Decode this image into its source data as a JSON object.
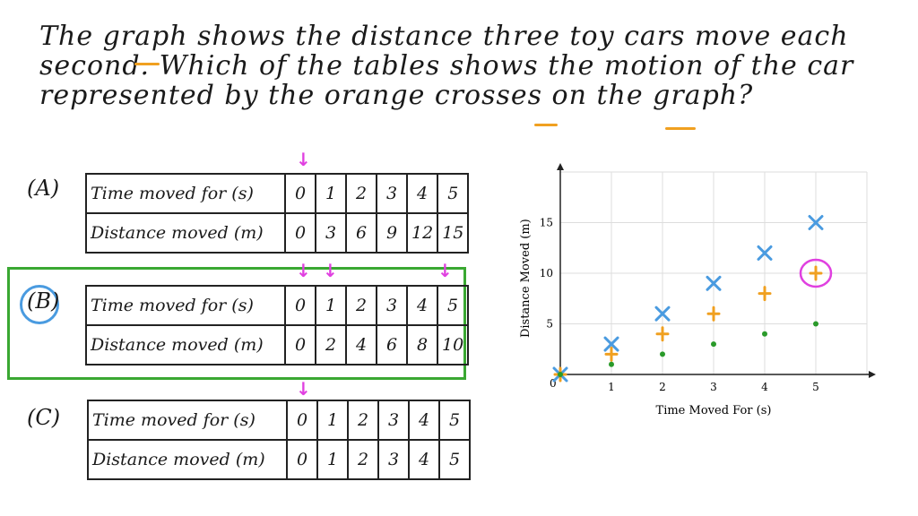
{
  "question": "The graph shows the distance three toy cars move each second. Which of the tables shows the motion of the car represented by the orange crosses on the graph?",
  "options": [
    {
      "label": "(A)",
      "time_header": "Time moved for (s)",
      "time": [
        "0",
        "1",
        "2",
        "3",
        "4",
        "5"
      ],
      "dist_header": "Distance moved (m)",
      "dist": [
        "0",
        "3",
        "6",
        "9",
        "12",
        "15"
      ]
    },
    {
      "label": "(B)",
      "time_header": "Time moved for (s)",
      "time": [
        "0",
        "1",
        "2",
        "3",
        "4",
        "5"
      ],
      "dist_header": "Distance moved (m)",
      "dist": [
        "0",
        "2",
        "4",
        "6",
        "8",
        "10"
      ],
      "selected": true
    },
    {
      "label": "(C)",
      "time_header": "Time moved for (s)",
      "time": [
        "0",
        "1",
        "2",
        "3",
        "4",
        "5"
      ],
      "dist_header": "Distance moved (m)",
      "dist": [
        "0",
        "1",
        "2",
        "3",
        "4",
        "5"
      ]
    }
  ],
  "colors": {
    "answer_box": "#3aa832",
    "circle": "#4a9be0",
    "annotation": "#e040e0",
    "highlight": "#f0a020"
  },
  "chart_data": {
    "type": "scatter",
    "xlabel": "Time Moved For (s)",
    "ylabel": "Distance Moved (m)",
    "xlim": [
      0,
      6
    ],
    "ylim": [
      0,
      20
    ],
    "xticks": [
      "1",
      "2",
      "3",
      "4",
      "5"
    ],
    "yticks": [
      "5",
      "10",
      "15"
    ],
    "origin_label": "0",
    "grid": true,
    "series": [
      {
        "marker": "x",
        "color": "#4a9be0",
        "x": [
          0,
          1,
          2,
          3,
          4,
          5
        ],
        "y": [
          0,
          3,
          6,
          9,
          12,
          15
        ]
      },
      {
        "marker": "+",
        "color": "#f0a020",
        "x": [
          0,
          1,
          2,
          3,
          4,
          5
        ],
        "y": [
          0,
          2,
          4,
          6,
          8,
          10
        ]
      },
      {
        "marker": "dot",
        "color": "#2a9a2a",
        "x": [
          0,
          1,
          2,
          3,
          4,
          5
        ],
        "y": [
          0,
          1,
          2,
          3,
          4,
          5
        ]
      }
    ],
    "annotation": {
      "type": "circle",
      "x": 5,
      "y": 10,
      "color": "#e040e0"
    }
  }
}
